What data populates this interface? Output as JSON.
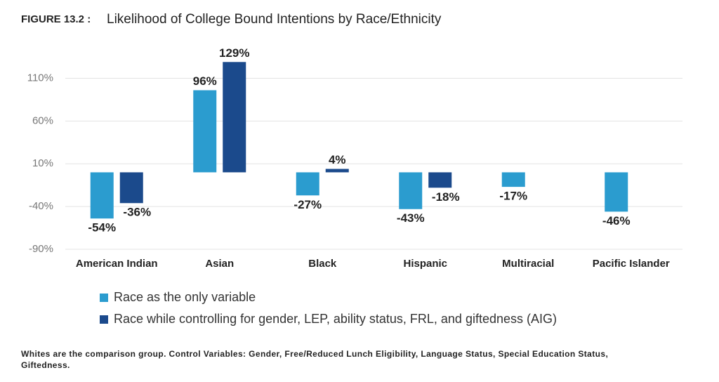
{
  "chart_data": {
    "type": "bar",
    "title_prefix": "FIGURE 13.2 :",
    "title": "Likelihood of College Bound Intentions by Race/Ethnicity",
    "categories": [
      "American Indian",
      "Asian",
      "Black",
      "Hispanic",
      "Multiracial",
      "Pacific Islander"
    ],
    "series": [
      {
        "name": "Race as the only variable",
        "color": "#2b9ccf",
        "values": [
          -54,
          96,
          -27,
          -43,
          -17,
          -46
        ],
        "value_labels": [
          "-54%",
          "96%",
          "-27%",
          "-43%",
          "-17%",
          "-46%"
        ]
      },
      {
        "name": "Race while controlling for gender, LEP, ability status, FRL, and giftedness (AIG)",
        "color": "#1b4a8c",
        "values": [
          -36,
          129,
          4,
          -18,
          null,
          null
        ],
        "value_labels": [
          "-36%",
          "129%",
          "4%",
          "-18%",
          null,
          null
        ]
      }
    ],
    "ylim": [
      -90,
      135
    ],
    "yticks": [
      {
        "value": 110,
        "label": "110%"
      },
      {
        "value": 60,
        "label": "60%"
      },
      {
        "value": 10,
        "label": "10%"
      },
      {
        "value": -40,
        "label": "-40%"
      },
      {
        "value": -90,
        "label": "-90%"
      }
    ],
    "grid": true,
    "note": "Whites are the comparison group. Control Variables: Gender, Free/Reduced Lunch Eligibility, Language Status, Special Education Status, Giftedness."
  }
}
